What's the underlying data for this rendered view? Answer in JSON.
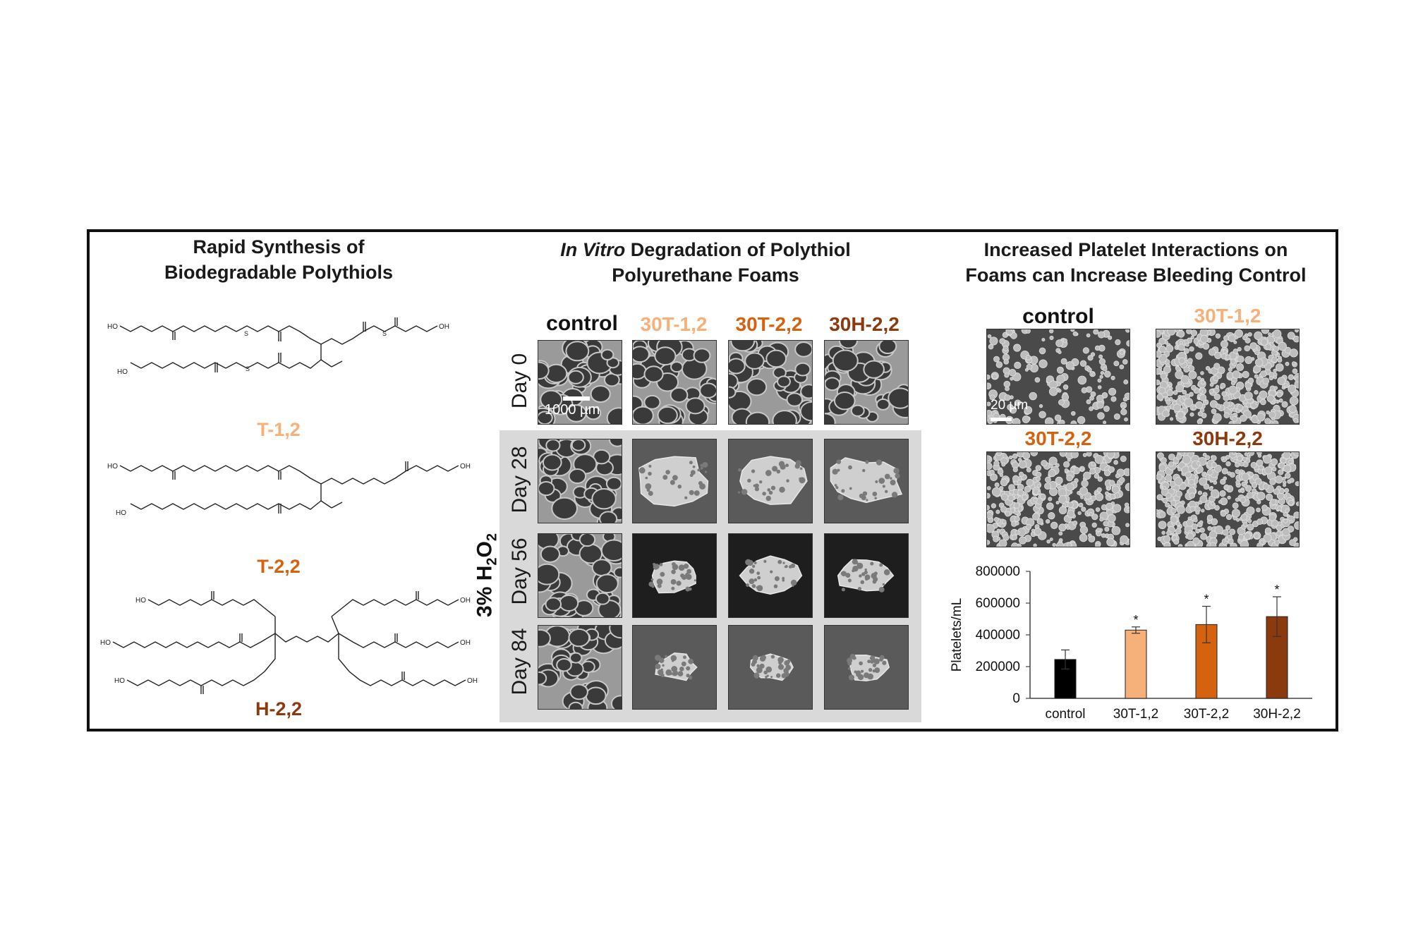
{
  "colors": {
    "control": "#000000",
    "t12": "#f6b07a",
    "t22": "#d4620f",
    "h22": "#8b3a0e",
    "panel_grey": "#d9d9d9"
  },
  "left": {
    "title_line1": "Rapid Synthesis of",
    "title_line2": "Biodegradable Polythiols",
    "molecules": [
      {
        "name": "T-1,2",
        "color_key": "t12"
      },
      {
        "name": "T-2,2",
        "color_key": "t22"
      },
      {
        "name": "H-2,2",
        "color_key": "h22"
      }
    ],
    "atom_labels": {
      "hydroxyl": "HO",
      "hydroxyl_end": "OH",
      "oxygen": "O",
      "sulfur": "S"
    }
  },
  "middle": {
    "title_italic": "In Vitro",
    "title_rest": " Degradation of Polythiol",
    "title_line2": "Polyurethane Foams",
    "columns": [
      "control",
      "30T-1,2",
      "30T-2,2",
      "30H-2,2"
    ],
    "rows": [
      "Day 0",
      "Day 28",
      "Day 56",
      "Day 84"
    ],
    "group_label_prefix": "3% H",
    "group_sub_1": "2",
    "group_mid": "O",
    "group_sub_2": "2",
    "scale_label": "1000 µm"
  },
  "right": {
    "title_line1": "Increased Platelet Interactions on",
    "title_line2": "Foams can Increase Bleeding Control",
    "images": [
      "control",
      "30T-1,2",
      "30T-2,2",
      "30H-2,2"
    ],
    "scale_label": "20 µm"
  },
  "chart_data": {
    "type": "bar",
    "categories": [
      "control",
      "30T-1,2",
      "30T-2,2",
      "30H-2,2"
    ],
    "values": [
      245000,
      430000,
      465000,
      515000
    ],
    "errors": [
      60000,
      20000,
      115000,
      125000
    ],
    "significant": [
      false,
      true,
      true,
      true
    ],
    "significance_marker": "*",
    "ylabel": "Platelets/mL",
    "ylim": [
      0,
      800000
    ],
    "yticks": [
      0,
      200000,
      400000,
      600000,
      800000
    ],
    "ytick_labels": [
      "0",
      "200000",
      "400000",
      "600000",
      "800000"
    ],
    "grid": false
  }
}
